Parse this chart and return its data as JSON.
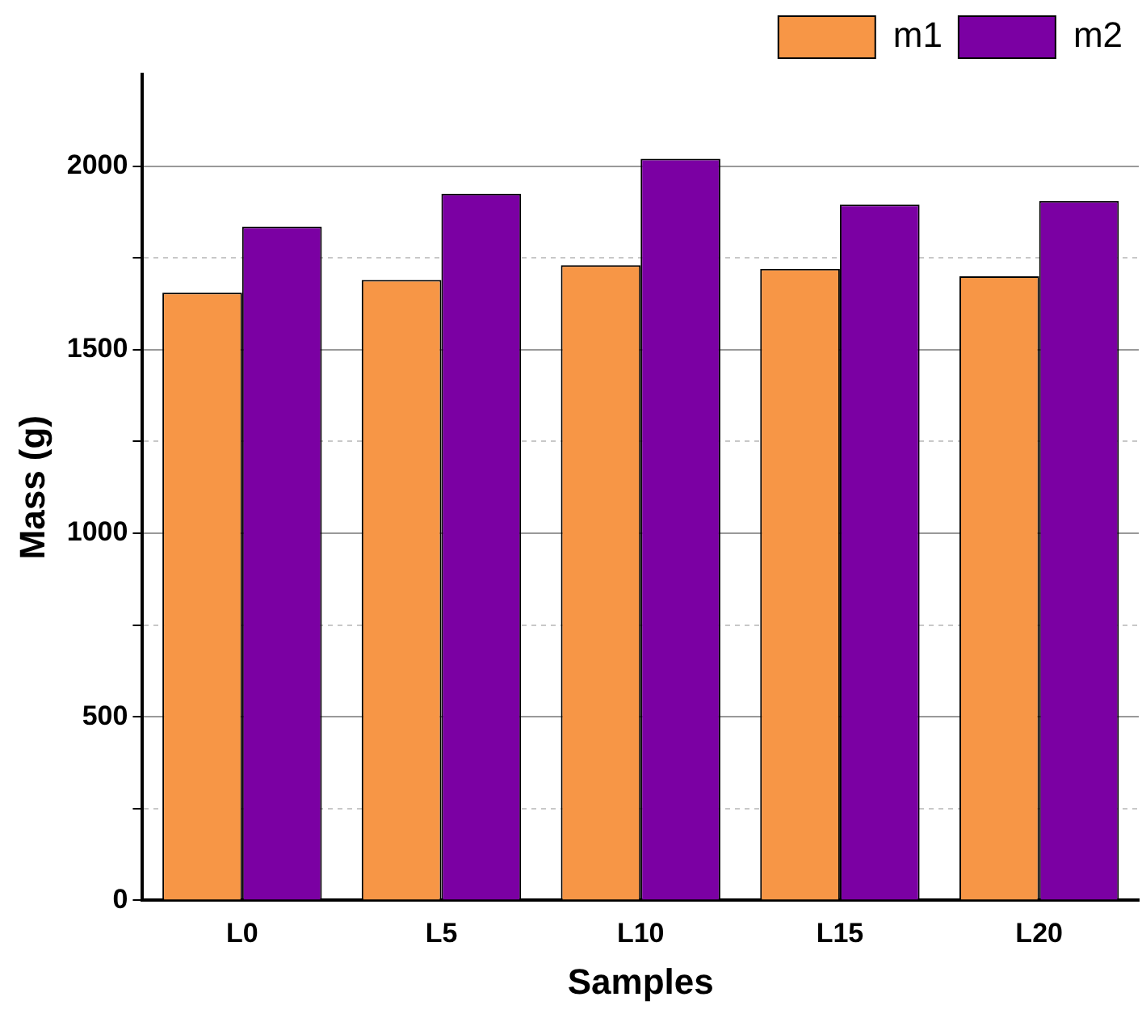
{
  "chart_data": {
    "type": "bar",
    "xlabel": "Samples",
    "ylabel": "Mass (g)",
    "categories": [
      "L0",
      "L5",
      "L10",
      "L15",
      "L20"
    ],
    "series": [
      {
        "name": "m1",
        "color": "#f79646",
        "values": [
          1655,
          1690,
          1730,
          1720,
          1700
        ]
      },
      {
        "name": "m2",
        "color": "#7b00a3",
        "values": [
          1835,
          1925,
          2020,
          1895,
          1905
        ]
      }
    ],
    "ylim": [
      0,
      2250
    ],
    "yticks": [
      0,
      {
        "value": 250,
        "label": null
      },
      500,
      {
        "value": 750,
        "label": null
      },
      1000,
      {
        "value": 1250,
        "label": null
      },
      1500,
      {
        "value": 1750,
        "label": null
      },
      2000
    ],
    "grid": "y",
    "legend": "top right"
  }
}
